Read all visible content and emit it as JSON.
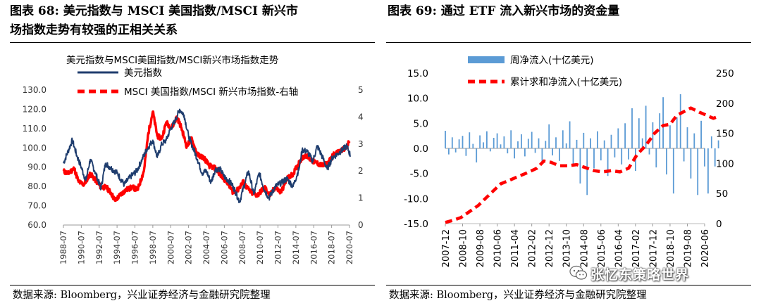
{
  "left_panel": {
    "title_line1": "图表 68:  美元指数与 MSCI 美国指数/MSCI 新兴市",
    "title_line2": "场指数走势有较强的正相关关系",
    "source": "数据来源:  Bloomberg，兴业证券经济与金融研究院整理"
  },
  "right_panel": {
    "title_line1": "图表 69:  通过 ETF 流入新兴市场的资金量",
    "source": "数据来源:  Bloomberg，兴业证券经济与金融研究院整理"
  },
  "watermark": "张忆东策略世界",
  "colors": {
    "navy": "#1f3d6e",
    "red": "#ff0000",
    "bar_blue": "#5b9bd5"
  },
  "chart_data": [
    {
      "type": "line",
      "title": "美元指数与MSCI美国指数/MSCI新兴市场指数走势",
      "legend": [
        "美元指数",
        "MSCI 美国指数/MSCI 新兴市场指数-右轴"
      ],
      "x_tick_labels": [
        "1988-07",
        "1990-07",
        "1992-07",
        "1994-07",
        "1996-07",
        "1998-07",
        "2000-07",
        "2002-07",
        "2004-07",
        "2006-07",
        "2008-07",
        "2010-07",
        "2012-07",
        "2014-07",
        "2016-07",
        "2018-07",
        "2020-07"
      ],
      "y_left": {
        "ticks": [
          "60.0",
          "70.0",
          "80.0",
          "90.0",
          "100.0",
          "110.0",
          "120.0",
          "130.0"
        ],
        "range": [
          60,
          130
        ]
      },
      "y_right": {
        "ticks": [
          "0",
          "1",
          "2",
          "3",
          "4",
          "5"
        ],
        "range": [
          0,
          5
        ]
      },
      "series": [
        {
          "name": "美元指数",
          "axis": "left",
          "points": [
            [
              1988.5,
              92
            ],
            [
              1989.0,
              98
            ],
            [
              1989.5,
              104
            ],
            [
              1990.0,
              96
            ],
            [
              1990.5,
              90
            ],
            [
              1991.0,
              83
            ],
            [
              1991.5,
              94
            ],
            [
              1992.0,
              88
            ],
            [
              1992.7,
              79
            ],
            [
              1993.2,
              92
            ],
            [
              1993.7,
              90
            ],
            [
              1994.5,
              87
            ],
            [
              1995.3,
              81
            ],
            [
              1996.0,
              85
            ],
            [
              1996.7,
              88
            ],
            [
              1997.3,
              94
            ],
            [
              1997.8,
              99
            ],
            [
              1998.5,
              104
            ],
            [
              1999.0,
              95
            ],
            [
              1999.5,
              102
            ],
            [
              2000.0,
              104
            ],
            [
              2000.5,
              110
            ],
            [
              2001.0,
              114
            ],
            [
              2001.5,
              120
            ],
            [
              2002.0,
              117
            ],
            [
              2002.5,
              106
            ],
            [
              2003.0,
              100
            ],
            [
              2003.5,
              94
            ],
            [
              2004.0,
              87
            ],
            [
              2004.5,
              88
            ],
            [
              2005.0,
              82
            ],
            [
              2005.5,
              89
            ],
            [
              2006.0,
              89
            ],
            [
              2006.5,
              85
            ],
            [
              2007.0,
              83
            ],
            [
              2007.5,
              80
            ],
            [
              2008.2,
              72
            ],
            [
              2008.8,
              82
            ],
            [
              2009.2,
              88
            ],
            [
              2009.8,
              76
            ],
            [
              2010.4,
              87
            ],
            [
              2011.0,
              78
            ],
            [
              2011.5,
              74
            ],
            [
              2012.2,
              80
            ],
            [
              2012.9,
              82
            ],
            [
              2013.5,
              84
            ],
            [
              2014.2,
              80
            ],
            [
              2014.9,
              90
            ],
            [
              2015.2,
              99
            ],
            [
              2015.8,
              98
            ],
            [
              2016.4,
              93
            ],
            [
              2016.9,
              101
            ],
            [
              2017.5,
              95
            ],
            [
              2018.0,
              89
            ],
            [
              2018.6,
              95
            ],
            [
              2019.2,
              97
            ],
            [
              2019.7,
              99
            ],
            [
              2020.2,
              101
            ],
            [
              2020.6,
              96
            ]
          ]
        },
        {
          "name": "MSCI 美国指数/MSCI 新兴市场指数-右轴",
          "axis": "right",
          "points": [
            [
              1988.5,
              2.0
            ],
            [
              1989.0,
              1.9
            ],
            [
              1989.7,
              2.1
            ],
            [
              1990.2,
              1.6
            ],
            [
              1990.8,
              1.5
            ],
            [
              1991.5,
              1.9
            ],
            [
              1992.0,
              1.7
            ],
            [
              1992.7,
              1.4
            ],
            [
              1993.3,
              1.4
            ],
            [
              1993.8,
              1.2
            ],
            [
              1994.3,
              0.9
            ],
            [
              1994.8,
              1.1
            ],
            [
              1995.5,
              1.3
            ],
            [
              1996.2,
              1.4
            ],
            [
              1996.8,
              1.3
            ],
            [
              1997.5,
              2.0
            ],
            [
              1998.0,
              3.4
            ],
            [
              1998.5,
              4.2
            ],
            [
              1999.0,
              3.3
            ],
            [
              1999.5,
              3.2
            ],
            [
              2000.0,
              3.8
            ],
            [
              2000.6,
              3.6
            ],
            [
              2001.2,
              4.0
            ],
            [
              2001.7,
              3.6
            ],
            [
              2002.3,
              2.9
            ],
            [
              2002.8,
              3.2
            ],
            [
              2003.5,
              2.6
            ],
            [
              2004.2,
              2.5
            ],
            [
              2004.8,
              2.2
            ],
            [
              2005.5,
              2.1
            ],
            [
              2006.2,
              1.8
            ],
            [
              2006.8,
              1.6
            ],
            [
              2007.5,
              1.2
            ],
            [
              2008.0,
              1.3
            ],
            [
              2008.6,
              1.6
            ],
            [
              2009.0,
              1.4
            ],
            [
              2009.5,
              1.2
            ],
            [
              2010.2,
              1.1
            ],
            [
              2011.0,
              1.4
            ],
            [
              2011.6,
              1.1
            ],
            [
              2012.2,
              1.4
            ],
            [
              2012.8,
              1.2
            ],
            [
              2013.5,
              1.7
            ],
            [
              2014.2,
              1.9
            ],
            [
              2015.0,
              2.4
            ],
            [
              2015.6,
              2.6
            ],
            [
              2016.2,
              2.4
            ],
            [
              2016.8,
              2.3
            ],
            [
              2017.5,
              2.2
            ],
            [
              2018.1,
              2.3
            ],
            [
              2018.7,
              2.6
            ],
            [
              2019.3,
              2.7
            ],
            [
              2019.8,
              2.8
            ],
            [
              2020.2,
              2.9
            ],
            [
              2020.5,
              3.1
            ]
          ]
        }
      ]
    },
    {
      "type": "bar",
      "title": "通过 ETF 流入新兴市场的资金量",
      "legend": [
        "周净流入(十亿美元)",
        "累计求和净流入(十亿美元)"
      ],
      "x_tick_labels": [
        "2007-12",
        "2008-10",
        "2009-08",
        "2010-06",
        "2011-04",
        "2012-02",
        "2012-12",
        "2013-10",
        "2014-08",
        "2015-06",
        "2016-04",
        "2017-02",
        "2017-12",
        "2018-10",
        "2019-08",
        "2020-06"
      ],
      "y_left": {
        "ticks": [
          "15.0",
          "10.0",
          "5.0",
          "0.0",
          "-5.0",
          "-10.0",
          "-15.0"
        ],
        "range": [
          -15,
          15
        ]
      },
      "y_right": {
        "ticks": [
          "250",
          "200",
          "150",
          "100",
          "50",
          "0"
        ],
        "range": [
          0,
          250
        ]
      },
      "series": [
        {
          "name": "周净流入(十亿美元)",
          "axis": "left",
          "points": [
            [
              0,
              3.5
            ],
            [
              0.2,
              -1.2
            ],
            [
              0.4,
              2.2
            ],
            [
              0.6,
              -0.8
            ],
            [
              0.8,
              1.8
            ],
            [
              1.0,
              2.5
            ],
            [
              1.2,
              -1.5
            ],
            [
              1.4,
              3.2
            ],
            [
              1.6,
              0.9
            ],
            [
              1.8,
              -2.8
            ],
            [
              2.0,
              2.6
            ],
            [
              2.2,
              1.2
            ],
            [
              2.4,
              3.4
            ],
            [
              2.6,
              -0.6
            ],
            [
              2.8,
              2.1
            ],
            [
              3.0,
              3.0
            ],
            [
              3.2,
              0.8
            ],
            [
              3.4,
              2.4
            ],
            [
              3.6,
              -1.0
            ],
            [
              3.8,
              3.6
            ],
            [
              4.0,
              -2.0
            ],
            [
              4.2,
              1.4
            ],
            [
              4.4,
              2.8
            ],
            [
              4.6,
              -1.6
            ],
            [
              4.8,
              1.9
            ],
            [
              5.0,
              3.3
            ],
            [
              5.2,
              -0.9
            ],
            [
              5.4,
              2.0
            ],
            [
              5.6,
              -3.0
            ],
            [
              5.8,
              1.5
            ],
            [
              6.0,
              4.8
            ],
            [
              6.2,
              -1.4
            ],
            [
              6.4,
              2.2
            ],
            [
              6.6,
              -2.5
            ],
            [
              6.8,
              3.6
            ],
            [
              7.0,
              1.0
            ],
            [
              7.2,
              5.4
            ],
            [
              7.4,
              -3.5
            ],
            [
              7.6,
              1.7
            ],
            [
              7.8,
              -7.0
            ],
            [
              8.0,
              3.1
            ],
            [
              8.2,
              -9.3
            ],
            [
              8.4,
              2.0
            ],
            [
              8.6,
              -4.0
            ],
            [
              8.8,
              3.4
            ],
            [
              9.0,
              -2.4
            ],
            [
              9.2,
              1.6
            ],
            [
              9.4,
              -5.5
            ],
            [
              9.6,
              2.7
            ],
            [
              9.8,
              -1.8
            ],
            [
              10.0,
              4.0
            ],
            [
              10.2,
              -3.2
            ],
            [
              10.4,
              5.0
            ],
            [
              10.6,
              -2.2
            ],
            [
              10.8,
              8.0
            ],
            [
              11.0,
              -4.5
            ],
            [
              11.2,
              6.0
            ],
            [
              11.4,
              2.0
            ],
            [
              11.6,
              8.5
            ],
            [
              11.8,
              -1.2
            ],
            [
              12.0,
              5.2
            ],
            [
              12.2,
              -3.8
            ],
            [
              12.4,
              7.0
            ],
            [
              12.6,
              10.2
            ],
            [
              12.8,
              -5.2
            ],
            [
              13.0,
              4.6
            ],
            [
              13.2,
              -9.0
            ],
            [
              13.4,
              6.2
            ],
            [
              13.6,
              10.8
            ],
            [
              13.8,
              -2.6
            ],
            [
              14.0,
              4.2
            ],
            [
              14.2,
              -6.0
            ],
            [
              14.4,
              3.0
            ],
            [
              14.6,
              -9.3
            ],
            [
              14.8,
              5.5
            ],
            [
              15.0,
              -3.6
            ],
            [
              15.2,
              -9.0
            ],
            [
              15.4,
              2.4
            ],
            [
              15.6,
              -3.6
            ],
            [
              15.8,
              1.6
            ]
          ]
        },
        {
          "name": "累计求和净流入(十亿美元)",
          "axis": "right",
          "points": [
            [
              0,
              2
            ],
            [
              0.4,
              5
            ],
            [
              0.9,
              10
            ],
            [
              1.4,
              20
            ],
            [
              1.9,
              30
            ],
            [
              2.4,
              44
            ],
            [
              2.8,
              55
            ],
            [
              3.2,
              66
            ],
            [
              3.7,
              72
            ],
            [
              4.2,
              78
            ],
            [
              4.7,
              84
            ],
            [
              5.3,
              92
            ],
            [
              5.7,
              104
            ],
            [
              6.1,
              102
            ],
            [
              6.6,
              96
            ],
            [
              7.1,
              96
            ],
            [
              7.6,
              98
            ],
            [
              8.0,
              94
            ],
            [
              8.6,
              88
            ],
            [
              9.1,
              86
            ],
            [
              9.6,
              88
            ],
            [
              10.1,
              86
            ],
            [
              10.6,
              92
            ],
            [
              11.1,
              115
            ],
            [
              11.6,
              130
            ],
            [
              12.1,
              150
            ],
            [
              12.6,
              163
            ],
            [
              13.0,
              165
            ],
            [
              13.4,
              180
            ],
            [
              13.8,
              186
            ],
            [
              14.2,
              192
            ],
            [
              14.7,
              185
            ],
            [
              15.1,
              180
            ],
            [
              15.5,
              175
            ],
            [
              15.8,
              178
            ]
          ]
        }
      ]
    }
  ]
}
